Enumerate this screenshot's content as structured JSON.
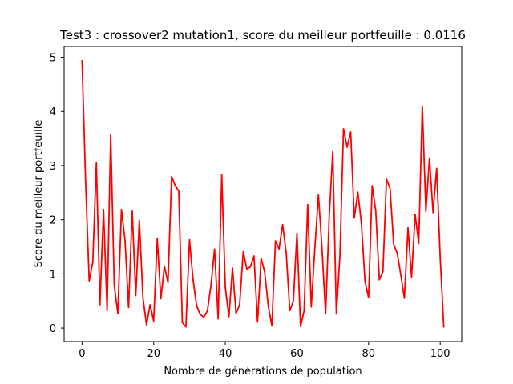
{
  "chart_data": {
    "type": "line",
    "title": "Test3 : crossover2 mutation1, score du meilleur portfeuille : 0.0116",
    "xlabel": "Nombre de générations de population",
    "ylabel": "Score du meilleur portfeuille",
    "xlim": [
      -5,
      106
    ],
    "ylim": [
      -0.25,
      5.2
    ],
    "xticks": [
      0,
      20,
      40,
      60,
      80,
      100
    ],
    "yticks": [
      0,
      1,
      2,
      3,
      4,
      5
    ],
    "grid": false,
    "series": [
      {
        "color": "#ff0000",
        "x": [
          0,
          1,
          2,
          3,
          4,
          5,
          6,
          7,
          8,
          9,
          10,
          11,
          12,
          13,
          14,
          15,
          16,
          17,
          18,
          19,
          20,
          21,
          22,
          23,
          24,
          25,
          26,
          27,
          28,
          29,
          30,
          31,
          32,
          33,
          34,
          35,
          36,
          37,
          38,
          39,
          40,
          41,
          42,
          43,
          44,
          45,
          46,
          47,
          48,
          49,
          50,
          51,
          52,
          53,
          54,
          55,
          56,
          57,
          58,
          59,
          60,
          61,
          62,
          63,
          64,
          65,
          66,
          67,
          68,
          69,
          70,
          71,
          72,
          73,
          74,
          75,
          76,
          77,
          78,
          79,
          80,
          81,
          82,
          83,
          84,
          85,
          86,
          87,
          88,
          89,
          90,
          91,
          92,
          93,
          94,
          95,
          96,
          97,
          98,
          99,
          100,
          101
        ],
        "values": [
          4.95,
          2.7,
          0.87,
          1.22,
          3.05,
          0.43,
          2.19,
          0.32,
          3.57,
          0.78,
          0.27,
          2.19,
          1.62,
          0.38,
          2.16,
          0.6,
          1.99,
          0.56,
          0.06,
          0.43,
          0.13,
          1.65,
          0.54,
          1.14,
          0.84,
          2.8,
          2.63,
          2.53,
          0.1,
          0.02,
          1.63,
          0.89,
          0.41,
          0.25,
          0.2,
          0.32,
          0.79,
          1.46,
          0.17,
          2.83,
          0.75,
          0.21,
          1.11,
          0.27,
          0.43,
          1.41,
          1.09,
          1.13,
          1.33,
          0.11,
          1.29,
          1.03,
          0.4,
          0.04,
          1.61,
          1.46,
          1.91,
          1.39,
          0.32,
          0.5,
          1.75,
          0.03,
          0.32,
          2.28,
          0.39,
          1.48,
          2.46,
          1.46,
          0.26,
          2.04,
          3.26,
          0.26,
          1.34,
          3.68,
          3.34,
          3.62,
          2.03,
          2.51,
          1.93,
          0.86,
          0.56,
          2.63,
          2.16,
          0.89,
          1.04,
          2.75,
          2.58,
          1.55,
          1.38,
          0.98,
          0.55,
          1.85,
          0.94,
          2.1,
          1.56,
          4.1,
          2.15,
          3.14,
          2.13,
          2.95,
          1.3,
          0.01
        ]
      }
    ]
  }
}
